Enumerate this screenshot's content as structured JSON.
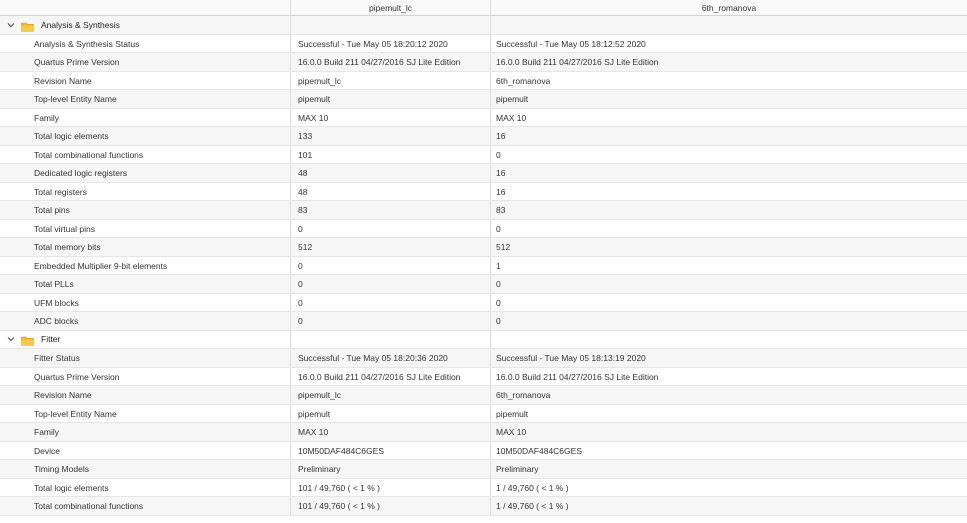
{
  "header": {
    "col1": "pipemult_lc",
    "col2": "6th_romanova"
  },
  "sections": [
    {
      "name": "Analysis & Synthesis",
      "rows": [
        {
          "label": "Analysis & Synthesis Status",
          "v1": "Successful - Tue May 05 18:20:12 2020",
          "v2": "Successful - Tue May 05 18:12:52 2020"
        },
        {
          "label": "Quartus Prime Version",
          "v1": "16.0.0 Build 211 04/27/2016 SJ Lite Edition",
          "v2": "16.0.0 Build 211 04/27/2016 SJ Lite Edition"
        },
        {
          "label": "Revision Name",
          "v1": "pipemult_lc",
          "v2": "6th_romanova"
        },
        {
          "label": "Top-level Entity Name",
          "v1": "pipemult",
          "v2": "pipemult"
        },
        {
          "label": "Family",
          "v1": "MAX 10",
          "v2": "MAX 10"
        },
        {
          "label": "Total logic elements",
          "v1": "133",
          "v2": "16"
        },
        {
          "label": "Total combinational functions",
          "v1": "101",
          "v2": "0"
        },
        {
          "label": "Dedicated logic registers",
          "v1": "48",
          "v2": "16"
        },
        {
          "label": "Total registers",
          "v1": "48",
          "v2": "16"
        },
        {
          "label": "Total pins",
          "v1": "83",
          "v2": "83"
        },
        {
          "label": "Total virtual pins",
          "v1": "0",
          "v2": "0"
        },
        {
          "label": "Total memory bits",
          "v1": "512",
          "v2": "512"
        },
        {
          "label": "Embedded Multiplier 9-bit elements",
          "v1": "0",
          "v2": "1"
        },
        {
          "label": "Total PLLs",
          "v1": "0",
          "v2": "0"
        },
        {
          "label": "UFM blocks",
          "v1": "0",
          "v2": "0"
        },
        {
          "label": "ADC blocks",
          "v1": "0",
          "v2": "0"
        }
      ]
    },
    {
      "name": "Fitter",
      "rows": [
        {
          "label": "Fitter Status",
          "v1": "Successful - Tue May 05 18:20:36 2020",
          "v2": "Successful - Tue May 05 18:13:19 2020"
        },
        {
          "label": "Quartus Prime Version",
          "v1": "16.0.0 Build 211 04/27/2016 SJ Lite Edition",
          "v2": "16.0.0 Build 211 04/27/2016 SJ Lite Edition"
        },
        {
          "label": "Revision Name",
          "v1": "pipemult_lc",
          "v2": "6th_romanova"
        },
        {
          "label": "Top-level Entity Name",
          "v1": "pipemult",
          "v2": "pipemult"
        },
        {
          "label": "Family",
          "v1": "MAX 10",
          "v2": "MAX 10"
        },
        {
          "label": "Device",
          "v1": "10M50DAF484C6GES",
          "v2": "10M50DAF484C6GES"
        },
        {
          "label": "Timing Models",
          "v1": "Preliminary",
          "v2": "Preliminary"
        },
        {
          "label": "Total logic elements",
          "v1": "101 / 49,760 ( < 1 % )",
          "v2": "1 / 49,760 ( < 1 % )"
        },
        {
          "label": "Total combinational functions",
          "v1": "101 / 49,760 ( < 1 % )",
          "v2": "1 / 49,760 ( < 1 % )"
        }
      ]
    }
  ],
  "icons": {
    "expand": "chevron-down-icon",
    "folder": "folder-icon",
    "folder_color": "#f0b429"
  }
}
